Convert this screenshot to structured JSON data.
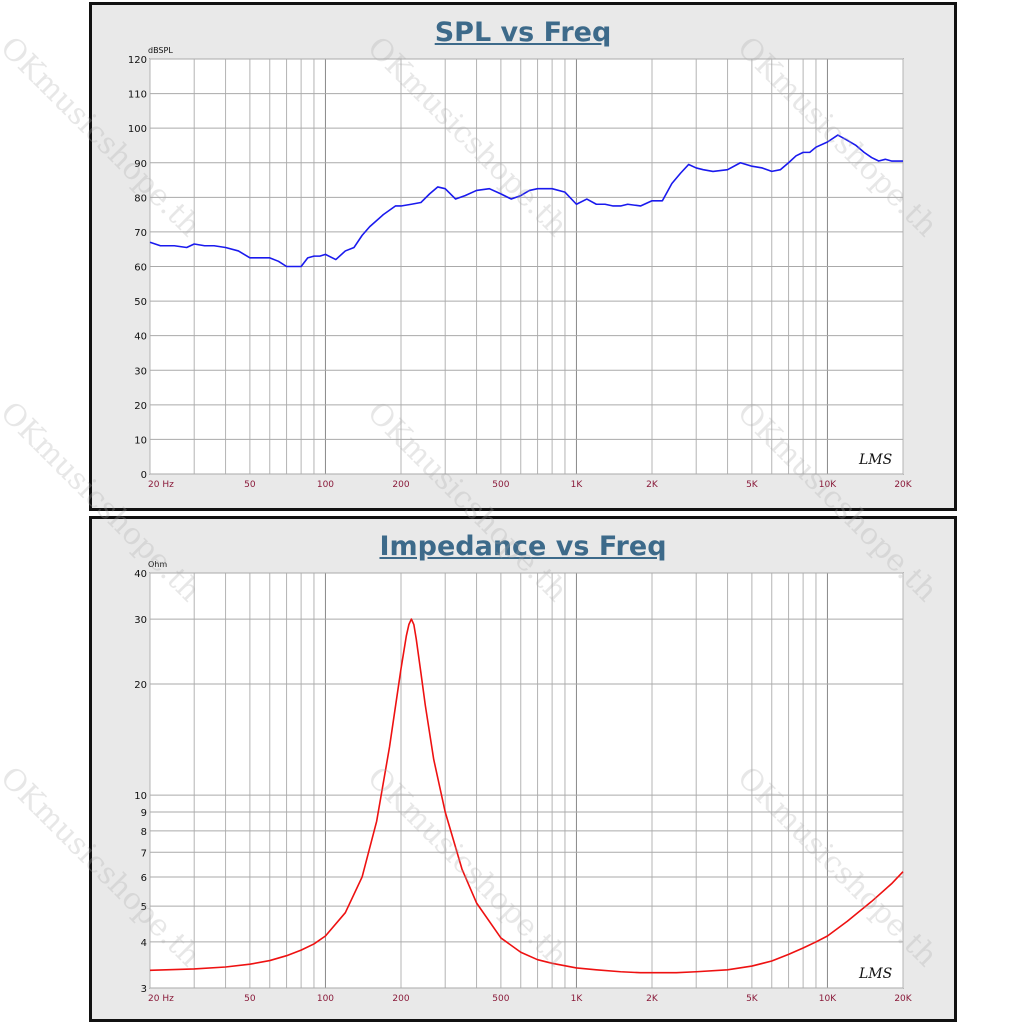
{
  "watermark": "OKmusicshope.th",
  "chart_data": [
    {
      "type": "line",
      "title": "SPL vs Freq",
      "ylabel": "dBSPL",
      "xlabel": "",
      "xscale": "log",
      "xlim": [
        20,
        20000
      ],
      "ylim": [
        0,
        120
      ],
      "yscale": "linear",
      "yticks": [
        0,
        10,
        20,
        30,
        40,
        50,
        60,
        70,
        80,
        90,
        100,
        110,
        120
      ],
      "xticks": [
        20,
        50,
        100,
        200,
        500,
        1000,
        2000,
        5000,
        10000,
        20000
      ],
      "xtick_labels": [
        "20 Hz",
        "50",
        "100",
        "200",
        "500",
        "1K",
        "2K",
        "5K",
        "10K",
        "20K"
      ],
      "grid": true,
      "watermark_text": "LMS",
      "color": "#1a1aee",
      "series": [
        {
          "x": [
            20,
            22,
            25,
            28,
            30,
            33,
            36,
            40,
            45,
            50,
            55,
            60,
            65,
            70,
            75,
            80,
            85,
            90,
            95,
            100,
            110,
            120,
            130,
            140,
            150,
            170,
            190,
            200,
            220,
            240,
            260,
            280,
            300,
            330,
            360,
            400,
            450,
            500,
            550,
            600,
            650,
            700,
            750,
            800,
            900,
            1000,
            1100,
            1200,
            1300,
            1400,
            1500,
            1600,
            1800,
            2000,
            2200,
            2400,
            2600,
            2800,
            3000,
            3200,
            3500,
            4000,
            4500,
            5000,
            5500,
            6000,
            6500,
            7000,
            7500,
            8000,
            8500,
            9000,
            10000,
            11000,
            12000,
            13000,
            14000,
            15000,
            16000,
            17000,
            18000,
            19000,
            20000
          ],
          "values": [
            67,
            66,
            66,
            65.5,
            66.5,
            66,
            66,
            65.5,
            64.5,
            62.5,
            62.5,
            62.5,
            61.5,
            60,
            60,
            60,
            62.5,
            63,
            63,
            63.5,
            62,
            64.5,
            65.5,
            69,
            71.5,
            75,
            77.5,
            77.5,
            78,
            78.5,
            81,
            83,
            82.5,
            79.5,
            80.5,
            82,
            82.5,
            81,
            79.5,
            80.5,
            82,
            82.5,
            82.5,
            82.5,
            81.5,
            78,
            79.5,
            78,
            78,
            77.5,
            77.5,
            78,
            77.5,
            79,
            79,
            84,
            87,
            89.5,
            88.5,
            88,
            87.5,
            88,
            90,
            89,
            88.5,
            87.5,
            88,
            90,
            92,
            93,
            93,
            94.5,
            96,
            98,
            96.5,
            95,
            93,
            91.5,
            90.5,
            91,
            90.5,
            90.5,
            90.5
          ]
        }
      ]
    },
    {
      "type": "line",
      "title": "Impedance vs Freq",
      "ylabel": "Ohm",
      "xlabel": "",
      "xscale": "log",
      "xlim": [
        20,
        20000
      ],
      "ylim": [
        3,
        40
      ],
      "yscale": "log",
      "yticks": [
        3,
        4,
        5,
        6,
        7,
        8,
        9,
        10,
        20,
        30,
        40
      ],
      "xticks": [
        20,
        50,
        100,
        200,
        500,
        1000,
        2000,
        5000,
        10000,
        20000
      ],
      "xtick_labels": [
        "20 Hz",
        "50",
        "100",
        "200",
        "500",
        "1K",
        "2K",
        "5K",
        "10K",
        "20K"
      ],
      "grid": true,
      "watermark_text": "LMS",
      "color": "#ee1111",
      "series": [
        {
          "x": [
            20,
            30,
            40,
            50,
            60,
            70,
            80,
            90,
            100,
            120,
            140,
            160,
            180,
            200,
            210,
            215,
            220,
            225,
            230,
            240,
            250,
            270,
            300,
            350,
            400,
            500,
            600,
            700,
            800,
            1000,
            1200,
            1500,
            1800,
            2000,
            2500,
            3000,
            4000,
            5000,
            6000,
            7000,
            8000,
            9000,
            10000,
            12000,
            15000,
            18000,
            20000
          ],
          "values": [
            3.35,
            3.38,
            3.42,
            3.48,
            3.56,
            3.67,
            3.8,
            3.95,
            4.15,
            4.8,
            6.0,
            8.5,
            13.5,
            22,
            27,
            29,
            30,
            29,
            26.5,
            21.5,
            17.5,
            12.5,
            9.0,
            6.3,
            5.1,
            4.1,
            3.75,
            3.58,
            3.5,
            3.4,
            3.36,
            3.32,
            3.3,
            3.3,
            3.3,
            3.32,
            3.36,
            3.44,
            3.55,
            3.7,
            3.85,
            4.0,
            4.15,
            4.55,
            5.15,
            5.75,
            6.2
          ]
        }
      ]
    }
  ]
}
